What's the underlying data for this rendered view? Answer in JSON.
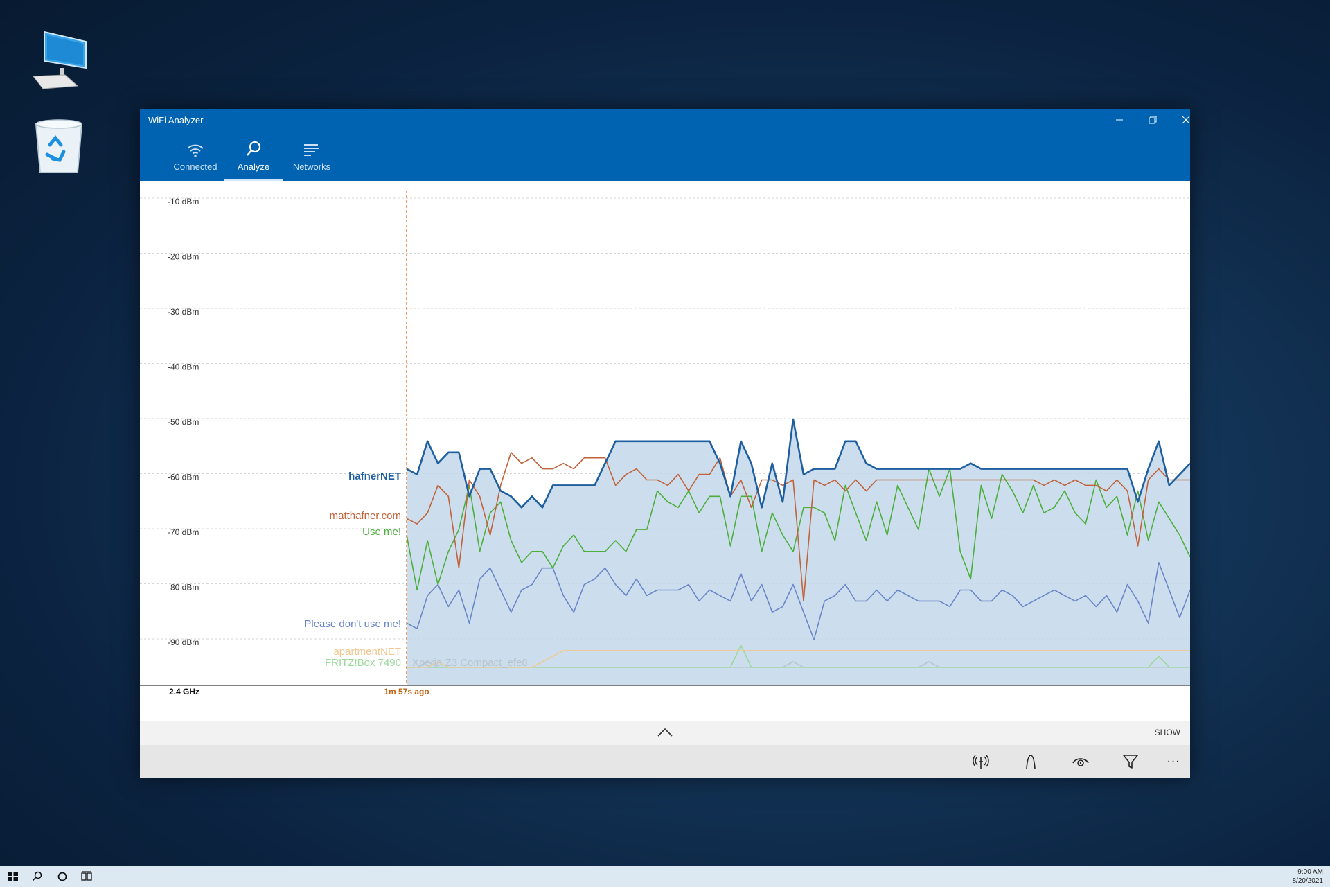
{
  "window": {
    "title": "WiFi Analyzer",
    "controls": [
      "minimize",
      "restore",
      "close"
    ]
  },
  "tabs": [
    {
      "label": "Connected",
      "icon": "wifi-icon",
      "active": false
    },
    {
      "label": "Analyze",
      "icon": "search-icon",
      "active": true
    },
    {
      "label": "Networks",
      "icon": "list-icon",
      "active": false
    }
  ],
  "chart": {
    "band_label": "2.4 GHz",
    "time_label": "1m 57s ago",
    "y_ticks": [
      "-10 dBm",
      "-20 dBm",
      "-30 dBm",
      "-40 dBm",
      "-50 dBm",
      "-60 dBm",
      "-70 dBm",
      "-80 dBm",
      "-90 dBm"
    ],
    "network_labels": [
      {
        "text": "hafnerNET",
        "color": "#1e5fa0",
        "bold": true
      },
      {
        "text": "matthafner.com",
        "color": "#c0623a",
        "bold": false
      },
      {
        "text": "Use me!",
        "color": "#4caf3c",
        "bold": false
      },
      {
        "text": "Please don't use me!",
        "color": "#6a86c8",
        "bold": false
      },
      {
        "text": "apartmentNET",
        "color": "#f0c890",
        "bold": false
      },
      {
        "text": "FRITZ!Box 7490",
        "color": "#9bd89b",
        "bold": false
      },
      {
        "text": "Xperia Z3 Compact_efe8",
        "color": "#b8c4cc",
        "bold": false
      }
    ]
  },
  "chart_data": {
    "type": "line",
    "ylabel": "",
    "xlabel": "",
    "ylim": [
      -100,
      -5
    ],
    "grid": true,
    "series": [
      {
        "name": "hafnerNET",
        "color": "#1e5fa0",
        "values": [
          -58,
          -59,
          -53,
          -57,
          -55,
          -55,
          -63,
          -58,
          -58,
          -62,
          -63,
          -65,
          -63,
          -65,
          -61,
          -61,
          -61,
          -61,
          -61,
          -57,
          -53,
          -53,
          -53,
          -53,
          -53,
          -53,
          -53,
          -53,
          -53,
          -53,
          -57,
          -63,
          -53,
          -57,
          -65,
          -57,
          -64,
          -49,
          -59,
          -58,
          -58,
          -58,
          -53,
          -53,
          -57,
          -58,
          -58,
          -58,
          -58,
          -58,
          -58,
          -58,
          -58,
          -58,
          -57,
          -58,
          -58,
          -58,
          -58,
          -58,
          -58,
          -58,
          -58,
          -58,
          -58,
          -58,
          -58,
          -58,
          -58,
          -58,
          -64,
          -58,
          -53,
          -61,
          -59,
          -57
        ]
      },
      {
        "name": "matthafner.com",
        "color": "#c0623a",
        "values": [
          -67,
          -68,
          -66,
          -61,
          -63,
          -76,
          -60,
          -63,
          -70,
          -61,
          -55,
          -57,
          -56,
          -58,
          -58,
          -57,
          -58,
          -56,
          -56,
          -56,
          -61,
          -59,
          -58,
          -60,
          -60,
          -61,
          -59,
          -62,
          -59,
          -59,
          -56,
          -63,
          -60,
          -65,
          -60,
          -60,
          -61,
          -60,
          -82,
          -60,
          -61,
          -60,
          -62,
          -60,
          -62,
          -60,
          -60,
          -60,
          -60,
          -60,
          -60,
          -60,
          -60,
          -60,
          -60,
          -60,
          -60,
          -60,
          -60,
          -60,
          -60,
          -61,
          -60,
          -61,
          -60,
          -61,
          -61,
          -62,
          -60,
          -62,
          -72,
          -60,
          -58,
          -60,
          -60,
          -60
        ]
      },
      {
        "name": "Use me!",
        "color": "#4caf3c",
        "values": [
          -70,
          -80,
          -71,
          -79,
          -73,
          -69,
          -61,
          -73,
          -66,
          -64,
          -71,
          -75,
          -73,
          -73,
          -76,
          -72,
          -70,
          -73,
          -73,
          -73,
          -71,
          -73,
          -69,
          -69,
          -62,
          -64,
          -65,
          -62,
          -66,
          -63,
          -63,
          -72,
          -63,
          -63,
          -73,
          -66,
          -70,
          -73,
          -65,
          -65,
          -66,
          -71,
          -61,
          -66,
          -71,
          -64,
          -70,
          -61,
          -65,
          -69,
          -58,
          -63,
          -58,
          -73,
          -78,
          -61,
          -67,
          -59,
          -62,
          -66,
          -61,
          -66,
          -65,
          -62,
          -66,
          -68,
          -60,
          -65,
          -63,
          -70,
          -62,
          -71,
          -64,
          -67,
          -70,
          -74
        ]
      },
      {
        "name": "Please don't use me!",
        "color": "#6a86c8",
        "values": [
          -86,
          -87,
          -81,
          -79,
          -83,
          -80,
          -86,
          -78,
          -76,
          -80,
          -84,
          -80,
          -79,
          -76,
          -76,
          -81,
          -84,
          -79,
          -78,
          -76,
          -79,
          -81,
          -78,
          -81,
          -80,
          -80,
          -80,
          -79,
          -82,
          -80,
          -81,
          -82,
          -77,
          -82,
          -79,
          -84,
          -83,
          -79,
          -84,
          -89,
          -82,
          -81,
          -79,
          -82,
          -82,
          -80,
          -82,
          -80,
          -81,
          -82,
          -82,
          -82,
          -83,
          -80,
          -80,
          -82,
          -82,
          -80,
          -81,
          -83,
          -82,
          -81,
          -80,
          -81,
          -82,
          -81,
          -83,
          -81,
          -84,
          -79,
          -82,
          -86,
          -75,
          -80,
          -85,
          -80
        ]
      },
      {
        "name": "apartmentNET",
        "color": "#f0c890",
        "values": [
          -94,
          -94,
          -94,
          -93,
          -94,
          -94,
          -94,
          -94,
          -94,
          -94,
          -94,
          -94,
          -94,
          -93,
          -92,
          -91,
          -91,
          -91,
          -91,
          -91,
          -91,
          -91,
          -91,
          -91,
          -91,
          -91,
          -91,
          -91,
          -91,
          -91,
          -91,
          -91,
          -91,
          -91,
          -91,
          -91,
          -91,
          -91,
          -91,
          -91,
          -91,
          -91,
          -91,
          -91,
          -91,
          -91,
          -91,
          -91,
          -91,
          -91,
          -91,
          -91,
          -91,
          -91,
          -91,
          -91,
          -91,
          -91,
          -91,
          -91,
          -91,
          -91,
          -91,
          -91,
          -91,
          -91,
          -91,
          -91,
          -91,
          -91,
          -91,
          -91,
          -91,
          -91,
          -91,
          -91
        ]
      },
      {
        "name": "FRITZ!Box 7490",
        "color": "#9bd89b",
        "values": [
          -94,
          -94,
          -94,
          -94,
          -94,
          -94,
          -94,
          -94,
          -94,
          -94,
          -94,
          -94,
          -94,
          -94,
          -94,
          -94,
          -94,
          -94,
          -94,
          -94,
          -94,
          -94,
          -94,
          -94,
          -94,
          -94,
          -94,
          -94,
          -94,
          -94,
          -94,
          -94,
          -90,
          -94,
          -94,
          -94,
          -94,
          -94,
          -94,
          -94,
          -94,
          -94,
          -94,
          -94,
          -94,
          -94,
          -94,
          -94,
          -94,
          -94,
          -94,
          -94,
          -94,
          -94,
          -94,
          -94,
          -94,
          -94,
          -94,
          -94,
          -94,
          -94,
          -94,
          -94,
          -94,
          -94,
          -94,
          -94,
          -94,
          -94,
          -94,
          -94,
          -92,
          -94,
          -94,
          -94
        ]
      },
      {
        "name": "Xperia Z3 Compact_efe8",
        "color": "#b8c4cc",
        "values": [
          -94,
          -94,
          -93,
          -94,
          -94,
          -94,
          -94,
          -94,
          -94,
          -94,
          -94,
          -94,
          -94,
          -94,
          -94,
          -94,
          -94,
          -94,
          -94,
          -94,
          -94,
          -94,
          -94,
          -94,
          -94,
          -94,
          -94,
          -94,
          -94,
          -94,
          -94,
          -94,
          -94,
          -94,
          -94,
          -94,
          -94,
          -93,
          -94,
          -94,
          -94,
          -94,
          -94,
          -94,
          -94,
          -94,
          -94,
          -94,
          -94,
          -94,
          -93,
          -94,
          -94,
          -94,
          -94,
          -94,
          -94,
          -94,
          -94,
          -94,
          -94,
          -94,
          -94,
          -94,
          -94,
          -94,
          -94,
          -94,
          -94,
          -94,
          -94,
          -94,
          -94,
          -94,
          -94,
          -94
        ]
      }
    ]
  },
  "bottom": {
    "show_label": "SHOW",
    "tools": [
      "antenna-icon",
      "channel-curve-icon",
      "eye-icon",
      "filter-icon",
      "more-icon"
    ],
    "more_glyph": "···"
  },
  "taskbar": {
    "time": "9:00 AM",
    "date": "8/20/2021"
  },
  "colors": {
    "titlebar": "#0063b1",
    "fill": "#c3d8ea",
    "marker": "#e07b35"
  }
}
